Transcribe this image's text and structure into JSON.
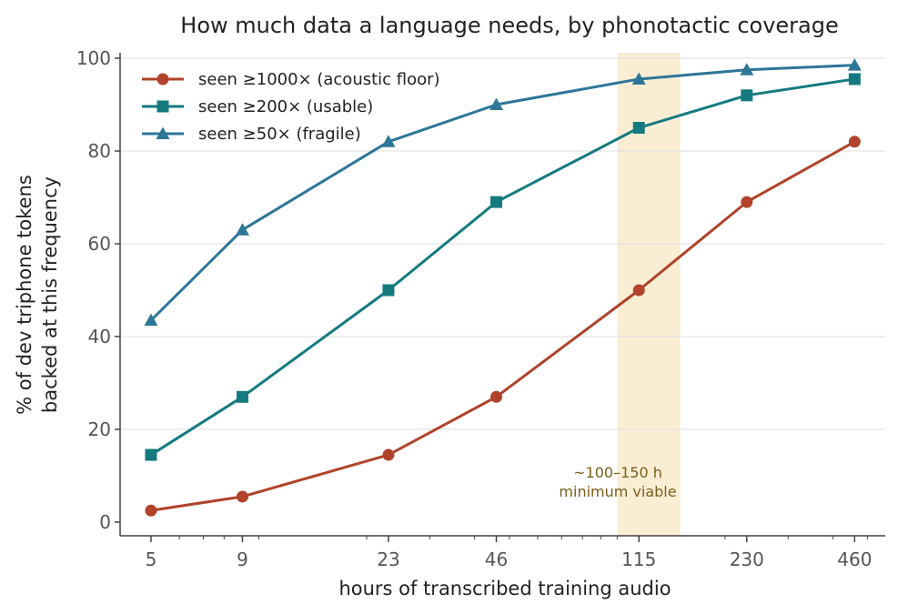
{
  "chart_data": {
    "type": "line",
    "title": "How much data a language needs, by phonotactic coverage",
    "xlabel": "hours of transcribed training audio",
    "ylabel_lines": [
      "% of dev triphone tokens",
      "backed at this frequency"
    ],
    "x_scale": "log",
    "x": [
      5,
      9,
      23,
      46,
      115,
      230,
      460
    ],
    "x_tick_labels": [
      "5",
      "9",
      "23",
      "46",
      "115",
      "230",
      "460"
    ],
    "y_ticks": [
      0,
      20,
      40,
      60,
      80,
      100
    ],
    "ylim": [
      0,
      100
    ],
    "grid": "y",
    "legend_position": "top-left",
    "series": [
      {
        "name": "seen ≥1000× (acoustic floor)",
        "marker": "circle",
        "color": "#b0432a",
        "values": [
          2.5,
          5.5,
          14.5,
          27,
          50,
          69,
          82
        ]
      },
      {
        "name": "seen ≥200× (usable)",
        "marker": "square",
        "color": "#147a7f",
        "values": [
          14.5,
          27,
          50,
          69,
          85,
          92,
          95.5
        ]
      },
      {
        "name": "seen ≥50× (fragile)",
        "marker": "triangle",
        "color": "#2d7698",
        "values": [
          43.5,
          63,
          82,
          90,
          95.5,
          97.5,
          98.5
        ]
      }
    ],
    "band": {
      "x_range": [
        100,
        150
      ],
      "color": "#f5e2b8",
      "label_lines": [
        "~100–150 h",
        "minimum viable"
      ]
    }
  }
}
